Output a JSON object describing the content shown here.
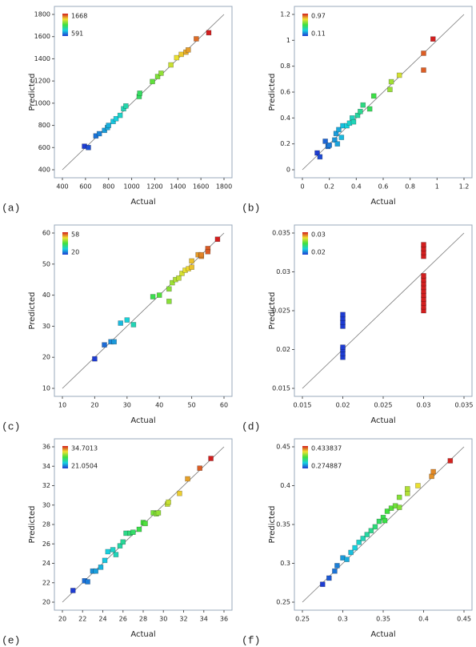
{
  "chart_data": [
    {
      "type": "scatter",
      "panel_label": "(a)",
      "x_label": "Actual",
      "y_label": "Predicted",
      "x": [
        591,
        625,
        690,
        720,
        765,
        790,
        800,
        840,
        865,
        900,
        930,
        950,
        1065,
        1070,
        1180,
        1225,
        1255,
        1340,
        1390,
        1430,
        1470,
        1490,
        1560,
        1668
      ],
      "values": [
        612,
        600,
        705,
        725,
        755,
        780,
        800,
        835,
        860,
        890,
        950,
        975,
        1060,
        1090,
        1195,
        1240,
        1270,
        1345,
        1410,
        1440,
        1460,
        1480,
        1580,
        1635
      ],
      "xlim": [
        400,
        1800
      ],
      "xticks": [
        400,
        600,
        800,
        1000,
        1200,
        1400,
        1600,
        1800
      ],
      "ylim": [
        400,
        1800
      ],
      "yticks": [
        400,
        600,
        800,
        1000,
        1200,
        1400,
        1600,
        1800
      ],
      "color_scale": {
        "max": 1668,
        "min": 591,
        "colors": [
          "#1e3cd2",
          "#18d0e0",
          "#3ee03e",
          "#f0e030",
          "#d21e1e"
        ]
      }
    },
    {
      "type": "scatter",
      "panel_label": "(b)",
      "x_label": "Actual",
      "y_label": "Predicted",
      "x": [
        0.11,
        0.13,
        0.17,
        0.19,
        0.2,
        0.24,
        0.25,
        0.26,
        0.27,
        0.29,
        0.3,
        0.33,
        0.35,
        0.37,
        0.38,
        0.41,
        0.43,
        0.45,
        0.5,
        0.53,
        0.65,
        0.66,
        0.72,
        0.9,
        0.9,
        0.97
      ],
      "values": [
        0.13,
        0.1,
        0.22,
        0.18,
        0.19,
        0.23,
        0.28,
        0.2,
        0.31,
        0.25,
        0.34,
        0.34,
        0.36,
        0.4,
        0.37,
        0.42,
        0.45,
        0.5,
        0.47,
        0.57,
        0.62,
        0.68,
        0.73,
        0.9,
        0.77,
        1.01
      ],
      "xlim": [
        0,
        1.2
      ],
      "xticks": [
        0,
        0.2,
        0.4,
        0.6,
        0.8,
        1,
        1.2
      ],
      "ylim": [
        0,
        1.2
      ],
      "yticks": [
        0,
        0.2,
        0.4,
        0.6,
        0.8,
        1,
        1.2
      ],
      "color_scale": {
        "max": 0.97,
        "min": 0.11,
        "colors": [
          "#1e3cd2",
          "#18d0e0",
          "#3ee03e",
          "#f0e030",
          "#d21e1e"
        ]
      }
    },
    {
      "type": "scatter",
      "panel_label": "(c)",
      "x_label": "Actual",
      "y_label": "Predicted",
      "x": [
        20,
        23,
        25,
        26,
        28,
        30,
        32,
        38,
        40,
        43,
        43,
        44,
        45,
        46,
        47,
        48,
        49,
        50,
        50,
        52,
        53,
        53,
        55,
        55,
        58
      ],
      "values": [
        19.5,
        24,
        25,
        25,
        31,
        32,
        30.5,
        39.5,
        40,
        38,
        42,
        44,
        45,
        45.5,
        47,
        48,
        48.5,
        49,
        51,
        53,
        52.5,
        53,
        55,
        54,
        58
      ],
      "xlim": [
        10,
        60
      ],
      "xticks": [
        10,
        20,
        30,
        40,
        50,
        60
      ],
      "ylim": [
        10,
        60
      ],
      "yticks": [
        10,
        20,
        30,
        40,
        50,
        60
      ],
      "color_scale": {
        "max": 58,
        "min": 20,
        "colors": [
          "#1e3cd2",
          "#18d0e0",
          "#3ee03e",
          "#f0e030",
          "#d21e1e"
        ]
      }
    },
    {
      "type": "scatter",
      "panel_label": "(d)",
      "x_label": "Actual",
      "y_label": "Predicted",
      "x": [
        0.02,
        0.02,
        0.02,
        0.02,
        0.02,
        0.02,
        0.02,
        0.02,
        0.03,
        0.03,
        0.03,
        0.03,
        0.03,
        0.03,
        0.03,
        0.03,
        0.03,
        0.03,
        0.03,
        0.03,
        0.03,
        0.03
      ],
      "values": [
        0.019,
        0.0195,
        0.02,
        0.0203,
        0.023,
        0.0235,
        0.024,
        0.0245,
        0.025,
        0.0255,
        0.026,
        0.0265,
        0.027,
        0.0275,
        0.028,
        0.0285,
        0.029,
        0.0295,
        0.032,
        0.0325,
        0.033,
        0.0335
      ],
      "xlim": [
        0.015,
        0.035
      ],
      "xticks": [
        0.015,
        0.02,
        0.025,
        0.03,
        0.035
      ],
      "ylim": [
        0.015,
        0.035
      ],
      "yticks": [
        0.015,
        0.02,
        0.025,
        0.03,
        0.035
      ],
      "color_scale": {
        "max": 0.03,
        "min": 0.02,
        "colors": [
          "#1e3cd2",
          "#18d0e0",
          "#3ee03e",
          "#f0e030",
          "#d21e1e"
        ]
      }
    },
    {
      "type": "scatter",
      "panel_label": "(e)",
      "x_label": "Actual",
      "y_label": "Predicted",
      "x": [
        21.05,
        22.2,
        22.5,
        23,
        23.3,
        23.8,
        24.2,
        24.5,
        25,
        25.3,
        25.7,
        26,
        26.3,
        26.7,
        27,
        27.6,
        28,
        28.2,
        29,
        29.3,
        29.5,
        30.4,
        30.5,
        31.6,
        32.4,
        33.6,
        34.7
      ],
      "values": [
        21.2,
        22.2,
        22.1,
        23.2,
        23.2,
        23.6,
        24.3,
        25.2,
        25.4,
        24.9,
        25.8,
        26.2,
        27.1,
        27.1,
        27.2,
        27.5,
        28.2,
        28.1,
        29.2,
        29.1,
        29.2,
        30.1,
        30.3,
        31.2,
        32.7,
        33.8,
        34.8
      ],
      "xlim": [
        20,
        36
      ],
      "xticks": [
        20,
        22,
        24,
        26,
        28,
        30,
        32,
        34,
        36
      ],
      "ylim": [
        20,
        36
      ],
      "yticks": [
        20,
        22,
        24,
        26,
        28,
        30,
        32,
        34,
        36
      ],
      "color_scale": {
        "max": 34.7013,
        "min": 21.0504,
        "colors": [
          "#1e3cd2",
          "#18d0e0",
          "#3ee03e",
          "#f0e030",
          "#d21e1e"
        ]
      }
    },
    {
      "type": "scatter",
      "panel_label": "(f)",
      "x_label": "Actual",
      "y_label": "Predicted",
      "x": [
        0.275,
        0.283,
        0.29,
        0.293,
        0.3,
        0.305,
        0.31,
        0.315,
        0.32,
        0.325,
        0.33,
        0.335,
        0.34,
        0.345,
        0.35,
        0.352,
        0.355,
        0.36,
        0.365,
        0.37,
        0.37,
        0.38,
        0.38,
        0.393,
        0.41,
        0.412,
        0.433
      ],
      "values": [
        0.273,
        0.281,
        0.29,
        0.297,
        0.307,
        0.305,
        0.314,
        0.32,
        0.327,
        0.332,
        0.337,
        0.342,
        0.347,
        0.354,
        0.359,
        0.355,
        0.367,
        0.371,
        0.374,
        0.372,
        0.385,
        0.39,
        0.396,
        0.4,
        0.412,
        0.418,
        0.432
      ],
      "xlim": [
        0.25,
        0.45
      ],
      "xticks": [
        0.25,
        0.3,
        0.35,
        0.4,
        0.45
      ],
      "ylim": [
        0.25,
        0.45
      ],
      "yticks": [
        0.25,
        0.3,
        0.35,
        0.4,
        0.45
      ],
      "color_scale": {
        "max": 0.433837,
        "min": 0.274887,
        "colors": [
          "#1e3cd2",
          "#18d0e0",
          "#3ee03e",
          "#f0e030",
          "#d21e1e"
        ]
      }
    }
  ]
}
